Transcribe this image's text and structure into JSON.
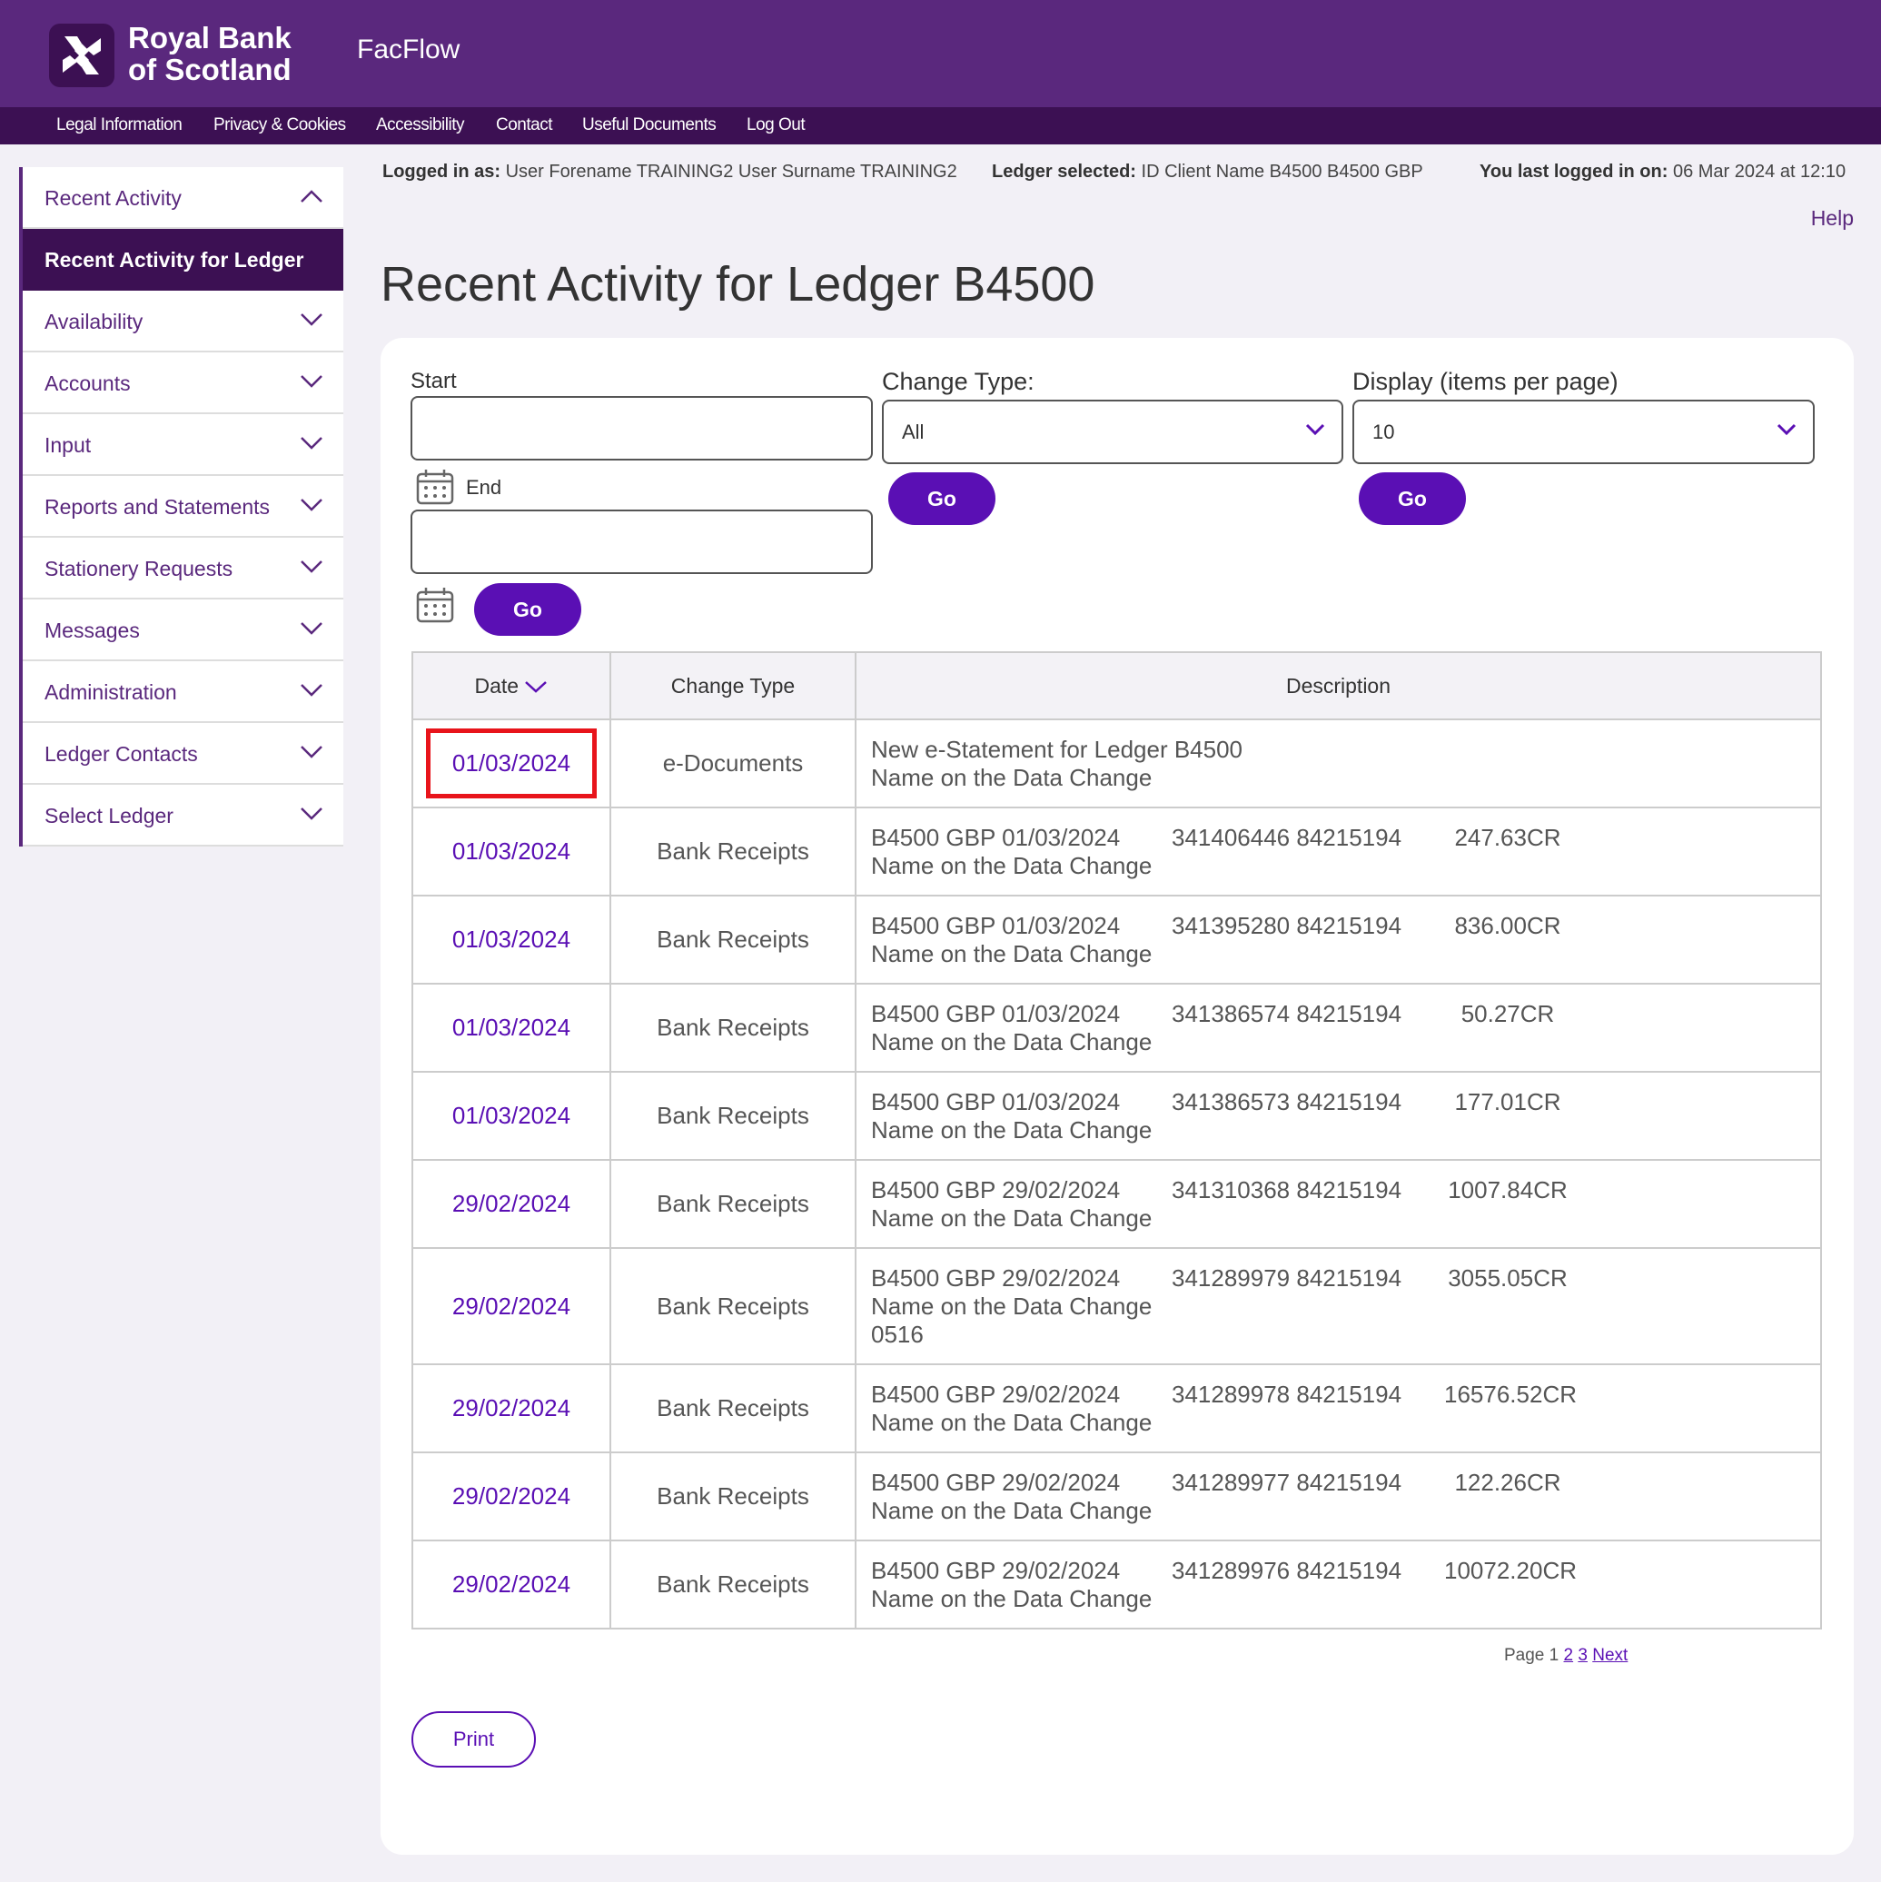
{
  "brand": {
    "line1": "Royal Bank",
    "line2": "of Scotland",
    "app_name": "FacFlow"
  },
  "nav": [
    "Legal Information",
    "Privacy & Cookies",
    "Accessibility",
    "Contact",
    "Useful Documents",
    "Log Out"
  ],
  "sidebar": {
    "section": "Recent Activity",
    "active": "Recent Activity for Ledger",
    "items": [
      "Availability",
      "Accounts",
      "Input",
      "Reports and Statements",
      "Stationery Requests",
      "Messages",
      "Administration",
      "Ledger Contacts",
      "Select Ledger"
    ]
  },
  "info": {
    "logged_label": "Logged in as:",
    "logged_value": "User Forename TRAINING2 User Surname TRAINING2",
    "ledger_label": "Ledger selected:",
    "ledger_value": "ID Client Name B4500 B4500 GBP",
    "last_label": "You last logged in on:",
    "last_value": "06 Mar 2024 at 12:10",
    "help": "Help"
  },
  "page_title": "Recent Activity for Ledger B4500",
  "filters": {
    "start_label": "Start",
    "start_value": "",
    "end_label": "End",
    "end_value": "",
    "change_type_label": "Change Type:",
    "change_type_value": "All",
    "display_label": "Display (items per page)",
    "display_value": "10",
    "go": "Go"
  },
  "table": {
    "headers": [
      "Date",
      "Change Type",
      "Description"
    ],
    "rows": [
      {
        "date": "01/03/2024",
        "type": "e-Documents",
        "d1": "New e-Statement for Ledger B4500",
        "d2": "",
        "amount": "",
        "line2": "Name on the Data Change",
        "line3": ""
      },
      {
        "date": "01/03/2024",
        "type": "Bank Receipts",
        "d1": "B4500 GBP 01/03/2024",
        "d2": "341406446 84215194",
        "amount": "247.63CR",
        "line2": "Name on the Data Change",
        "line3": ""
      },
      {
        "date": "01/03/2024",
        "type": "Bank Receipts",
        "d1": "B4500 GBP 01/03/2024",
        "d2": "341395280 84215194",
        "amount": "836.00CR",
        "line2": "Name on the Data Change",
        "line3": ""
      },
      {
        "date": "01/03/2024",
        "type": "Bank Receipts",
        "d1": "B4500 GBP 01/03/2024",
        "d2": "341386574 84215194",
        "amount": "50.27CR",
        "line2": "Name on the Data Change",
        "line3": ""
      },
      {
        "date": "01/03/2024",
        "type": "Bank Receipts",
        "d1": "B4500 GBP 01/03/2024",
        "d2": "341386573 84215194",
        "amount": "177.01CR",
        "line2": "Name on the Data Change",
        "line3": ""
      },
      {
        "date": "29/02/2024",
        "type": "Bank Receipts",
        "d1": "B4500 GBP 29/02/2024",
        "d2": "341310368 84215194",
        "amount": "1007.84CR",
        "line2": "Name on the Data Change",
        "line3": ""
      },
      {
        "date": "29/02/2024",
        "type": "Bank Receipts",
        "d1": "B4500 GBP 29/02/2024",
        "d2": "341289979 84215194",
        "amount": "3055.05CR",
        "line2": "Name on the Data Change",
        "line3": "0516"
      },
      {
        "date": "29/02/2024",
        "type": "Bank Receipts",
        "d1": "B4500 GBP 29/02/2024",
        "d2": "341289978 84215194",
        "amount": "16576.52CR",
        "line2": "Name on the Data Change",
        "line3": ""
      },
      {
        "date": "29/02/2024",
        "type": "Bank Receipts",
        "d1": "B4500 GBP 29/02/2024",
        "d2": "341289977 84215194",
        "amount": "122.26CR",
        "line2": "Name on the Data Change",
        "line3": ""
      },
      {
        "date": "29/02/2024",
        "type": "Bank Receipts",
        "d1": "B4500 GBP 29/02/2024",
        "d2": "341289976 84215194",
        "amount": "10072.20CR",
        "line2": "Name on the Data Change",
        "line3": ""
      }
    ]
  },
  "pagination": {
    "label": "Page",
    "current": "1",
    "pages": [
      "2",
      "3"
    ],
    "next": "Next"
  },
  "print": "Print",
  "colors": {
    "brand_purple": "#5a287d",
    "dark_purple": "#3c1053",
    "accent": "#5a0fb4",
    "highlight": "#e8141b"
  },
  "icons": {
    "logo": "rbs-daisy-logo",
    "calendar": "calendar-icon",
    "chevron": "chevron-down-icon",
    "chevron_up": "chevron-up-icon"
  }
}
